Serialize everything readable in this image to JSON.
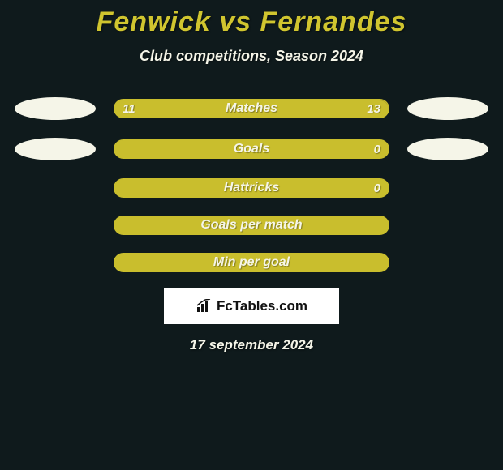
{
  "page": {
    "background_color": "#0f1a1c",
    "text_color": "#f5f5e8"
  },
  "header": {
    "title": "Fenwick vs Fernandes",
    "title_color": "#d0c52f",
    "subtitle": "Club competitions, Season 2024"
  },
  "bars": {
    "fill_color": "#c9be2d",
    "track_color": "#c9be2d",
    "border_color": "#c9be2d",
    "label_color": "#f5f5e8",
    "value_color": "#f5f5e8",
    "items": [
      {
        "label": "Matches",
        "left_value": "11",
        "right_value": "13",
        "fill_percent": 46,
        "show_left_ellipse": true,
        "show_right_ellipse": true
      },
      {
        "label": "Goals",
        "left_value": "",
        "right_value": "0",
        "fill_percent": 100,
        "show_left_ellipse": true,
        "show_right_ellipse": true
      },
      {
        "label": "Hattricks",
        "left_value": "",
        "right_value": "0",
        "fill_percent": 100,
        "show_left_ellipse": false,
        "show_right_ellipse": false
      },
      {
        "label": "Goals per match",
        "left_value": "",
        "right_value": "",
        "fill_percent": 100,
        "show_left_ellipse": false,
        "show_right_ellipse": false
      },
      {
        "label": "Min per goal",
        "left_value": "",
        "right_value": "",
        "fill_percent": 100,
        "show_left_ellipse": false,
        "show_right_ellipse": false
      }
    ]
  },
  "ellipse_color": "#f5f5e8",
  "footer": {
    "brand_text": "FcTables.com",
    "brand_box_bg": "#ffffff",
    "date_text": "17 september 2024"
  }
}
